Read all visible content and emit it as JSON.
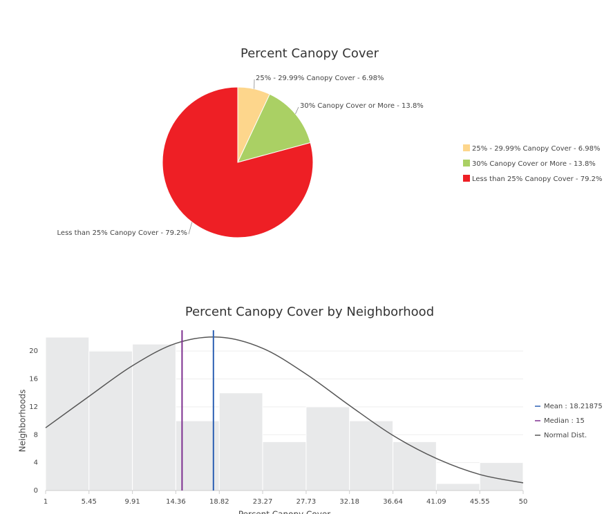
{
  "chart_data": [
    {
      "type": "pie",
      "title": "Percent Canopy Cover",
      "categories": [
        "25% - 29.99% Canopy Cover - 6.98%",
        "30% Canopy Cover or More - 13.8%",
        "Less than 25% Canopy Cover - 79.2%"
      ],
      "values": [
        6.98,
        13.8,
        79.2
      ],
      "colors": [
        "#fdd68c",
        "#aad064",
        "#ee1f25"
      ],
      "legend": "right"
    },
    {
      "type": "histogram",
      "title": "Percent Canopy Cover by Neighborhood",
      "x_label": "Percent Canopy Cover",
      "y_label": "Neighborhoods",
      "bins": [
        1,
        5.45,
        9.91,
        14.36,
        18.82,
        23.27,
        27.73,
        32.18,
        36.64,
        41.09,
        45.55,
        50
      ],
      "values": [
        22,
        20,
        21,
        10,
        14,
        7,
        12,
        10,
        7,
        1,
        4
      ],
      "color": "#e8e9ea",
      "xlim": [
        1,
        50
      ],
      "xticks": [
        1,
        5.45,
        9.91,
        14.36,
        18.82,
        23.27,
        27.73,
        32.18,
        36.64,
        41.09,
        45.55,
        50
      ],
      "ylim": [
        0,
        22
      ],
      "yticks": [
        0,
        4,
        8,
        12,
        16,
        20
      ],
      "grid": true,
      "reference_lines": [
        {
          "label": "Mean : 18.21875",
          "value": 18.21875,
          "color": "#2b5fb3"
        },
        {
          "label": "Median : 15",
          "value": 15,
          "color": "#7d2f8f"
        }
      ],
      "normal_dist": {
        "name": "Normal Dist.",
        "color": "#555555",
        "x": [
          1,
          5.45,
          9.91,
          14.36,
          18.82,
          23.27,
          27.73,
          32.18,
          36.64,
          41.09,
          45.55,
          50
        ],
        "values": [
          9.0,
          13.5,
          17.9,
          21.1,
          22.0,
          20.4,
          16.7,
          12.2,
          7.9,
          4.6,
          2.3,
          1.1
        ]
      },
      "legend": "right"
    }
  ]
}
